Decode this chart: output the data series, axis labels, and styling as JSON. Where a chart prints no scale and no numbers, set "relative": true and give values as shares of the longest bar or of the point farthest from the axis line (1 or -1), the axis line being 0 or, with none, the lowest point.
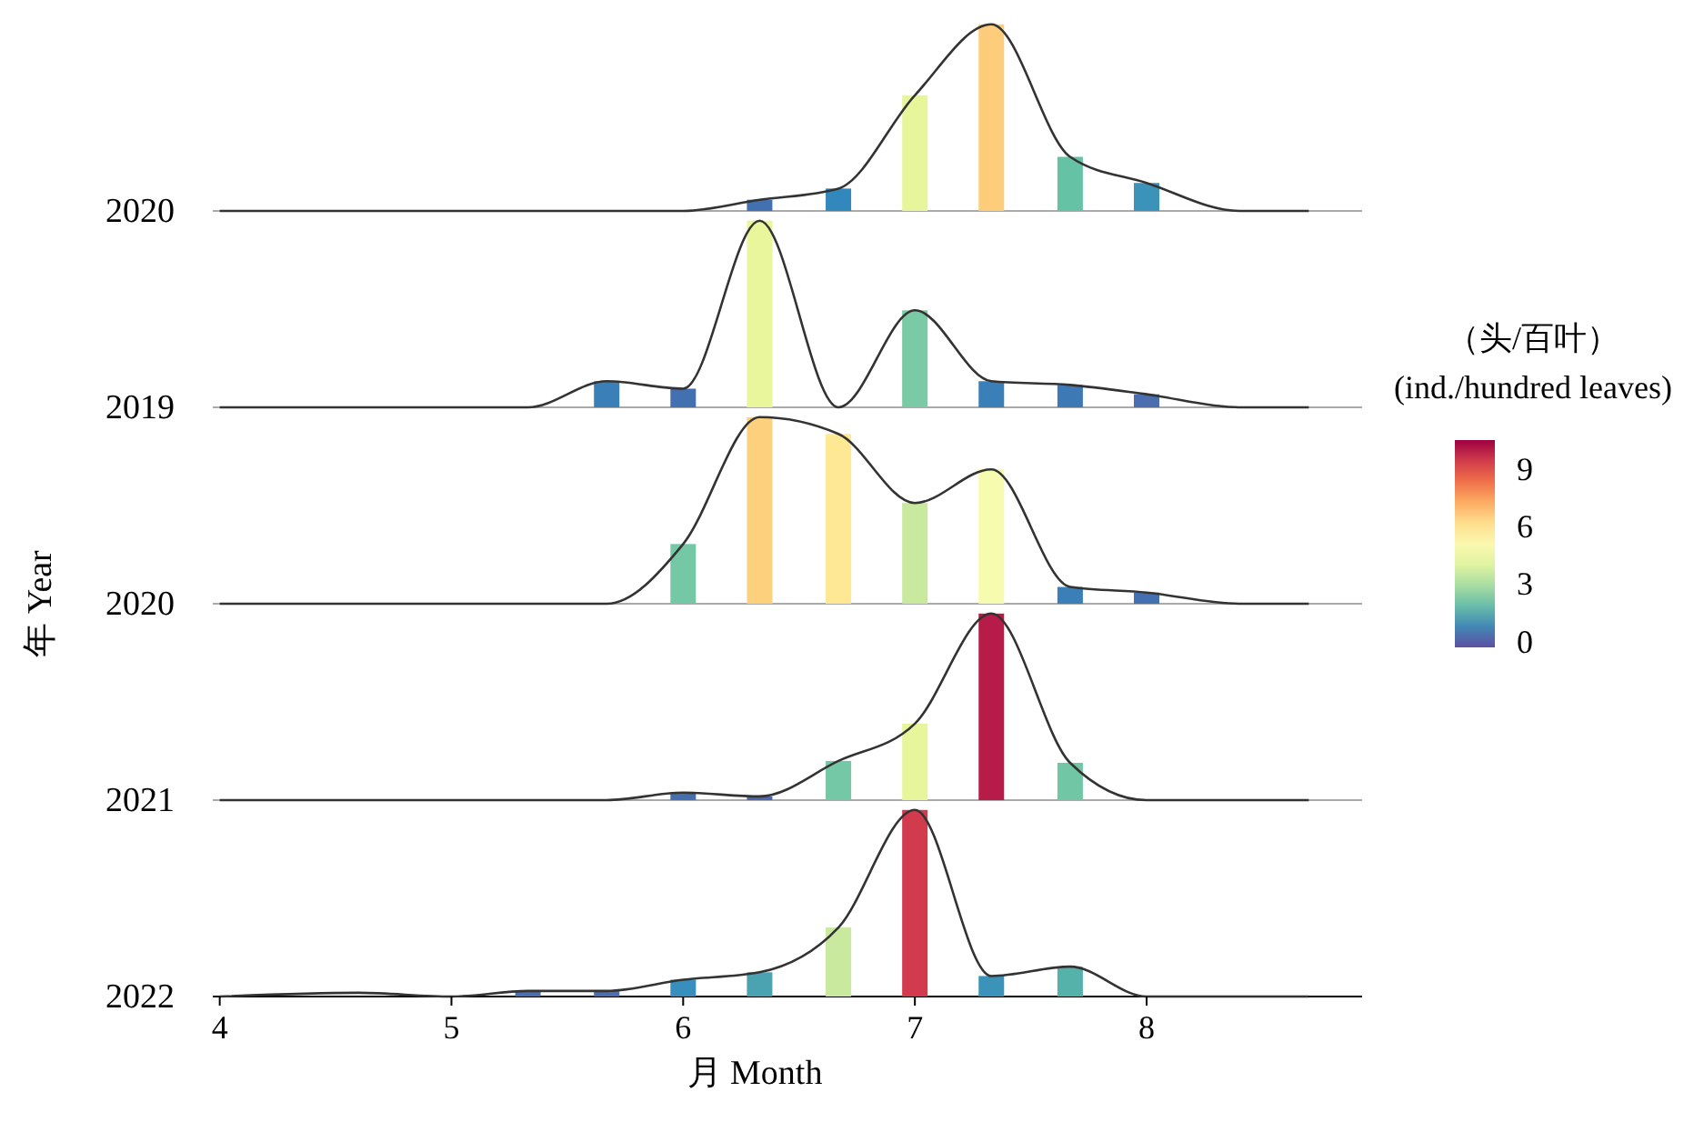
{
  "chart_data": [
    {
      "type": "bar",
      "relative": true,
      "title": "2020",
      "xlim": [
        3.97,
        8.93
      ],
      "tick_labels": false,
      "clabel": "（头/百叶）\n(ind./hundred leaves)",
      "clim": [
        -0.3,
        10.5
      ],
      "cticks": [
        0,
        3,
        6,
        9
      ],
      "series": [
        {
          "x": [
            6.33,
            6.67,
            7.0,
            7.33,
            7.67,
            8.0
          ],
          "values": [
            0.06,
            0.12,
            0.62,
            1,
            0.29,
            0.15
          ],
          "colors": [
            "#4270b0",
            "#3288bd",
            "#e8f69b",
            "#fdcd7b",
            "#66c2a5",
            "#3c93ba"
          ]
        },
        {
          "type": "line",
          "color": "#333333",
          "x": [
            4.0,
            5.5,
            6.0,
            6.33,
            6.67,
            7.0,
            7.33,
            7.67,
            8.0,
            8.4,
            8.7
          ],
          "values": [
            0,
            0,
            0,
            0.06,
            0.12,
            0.62,
            1,
            0.29,
            0.15,
            0,
            0
          ]
        }
      ]
    },
    {
      "type": "bar",
      "relative": true,
      "title": "2019",
      "xlim": [
        3.97,
        8.93
      ],
      "tick_labels": false,
      "series": [
        {
          "x": [
            5.67,
            6.0,
            6.33,
            7.0,
            7.33,
            7.67,
            8.0
          ],
          "values": [
            0.14,
            0.1,
            1,
            0.52,
            0.14,
            0.12,
            0.07
          ],
          "colors": [
            "#3a7fb8",
            "#4270b0",
            "#e9f69c",
            "#79caa5",
            "#3a7fb8",
            "#3d79b5",
            "#4a6eb0"
          ]
        },
        {
          "type": "line",
          "color": "#333333",
          "x": [
            4.0,
            5.33,
            5.67,
            6.0,
            6.33,
            6.67,
            7.0,
            7.33,
            7.67,
            8.0,
            8.4,
            8.7
          ],
          "values": [
            0,
            0,
            0.14,
            0.1,
            1,
            0,
            0.52,
            0.14,
            0.12,
            0.07,
            0,
            0
          ]
        }
      ]
    },
    {
      "type": "bar",
      "relative": true,
      "title": "2020",
      "ylabel": "年 Year",
      "xlim": [
        3.97,
        8.93
      ],
      "tick_labels": false,
      "series": [
        {
          "x": [
            6.0,
            6.33,
            6.67,
            7.0,
            7.33,
            7.67,
            8.0
          ],
          "values": [
            0.32,
            1,
            0.91,
            0.54,
            0.72,
            0.09,
            0.06
          ],
          "colors": [
            "#75c8a5",
            "#fdd07d",
            "#fee893",
            "#c9e99e",
            "#f6fbb0",
            "#3a7fb8",
            "#4270b0"
          ]
        },
        {
          "type": "line",
          "color": "#333333",
          "x": [
            4.0,
            5.67,
            6.0,
            6.33,
            6.67,
            7.0,
            7.33,
            7.67,
            8.0,
            8.4,
            8.7
          ],
          "values": [
            0,
            0,
            0.32,
            1,
            0.91,
            0.54,
            0.72,
            0.09,
            0.06,
            0,
            0
          ]
        }
      ]
    },
    {
      "type": "bar",
      "relative": true,
      "title": "2021",
      "xlim": [
        3.97,
        8.93
      ],
      "tick_labels": false,
      "series": [
        {
          "x": [
            6.0,
            6.33,
            6.67,
            7.0,
            7.33,
            7.67
          ],
          "values": [
            0.04,
            0.02,
            0.21,
            0.41,
            1,
            0.2
          ],
          "colors": [
            "#4270b0",
            "#4d67ad",
            "#75c8a5",
            "#e8f69b",
            "#b71c48",
            "#70c6a5"
          ]
        },
        {
          "type": "line",
          "color": "#333333",
          "x": [
            4.0,
            5.67,
            6.0,
            6.33,
            6.67,
            7.0,
            7.33,
            7.67,
            8.0,
            8.7
          ],
          "values": [
            0,
            0,
            0.04,
            0.02,
            0.21,
            0.41,
            1,
            0.2,
            0,
            0
          ]
        }
      ]
    },
    {
      "type": "bar",
      "relative": true,
      "title": "2022",
      "xlabel": "月 Month",
      "xlim": [
        3.97,
        8.93
      ],
      "xticks": [
        4,
        5,
        6,
        7,
        8
      ],
      "tick_labels": "x",
      "series": [
        {
          "x": [
            5.33,
            5.67,
            6.0,
            6.33,
            6.67,
            7.0,
            7.33,
            7.67
          ],
          "values": [
            0.03,
            0.03,
            0.09,
            0.13,
            0.37,
            1,
            0.11,
            0.16
          ],
          "colors": [
            "#4a6eb0",
            "#4a6eb0",
            "#388ebc",
            "#4ba2b1",
            "#c9e99e",
            "#d23a4e",
            "#3c93ba",
            "#55b2aa"
          ]
        },
        {
          "type": "line",
          "color": "#333333",
          "x": [
            4.0,
            4.6,
            5.0,
            5.33,
            5.67,
            6.0,
            6.33,
            6.67,
            7.0,
            7.33,
            7.67,
            8.0,
            8.7
          ],
          "values": [
            0,
            0.02,
            0,
            0.03,
            0.03,
            0.09,
            0.13,
            0.37,
            1,
            0.11,
            0.16,
            0,
            0
          ]
        }
      ]
    }
  ]
}
